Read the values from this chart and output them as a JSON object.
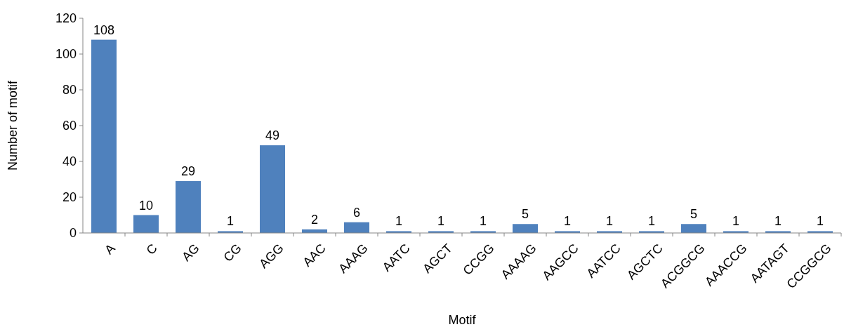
{
  "chart_data": {
    "type": "bar",
    "xlabel": "Motif",
    "ylabel": "Number of motif",
    "categories": [
      "A",
      "C",
      "AG",
      "CG",
      "AGG",
      "AAC",
      "AAAG",
      "AATC",
      "AGCT",
      "CCGG",
      "AAAAG",
      "AAGCC",
      "AATCC",
      "AGCTC",
      "ACGGCG",
      "AAACCG",
      "AATAGT",
      "CCGGCG"
    ],
    "values": [
      108,
      10,
      29,
      1,
      49,
      2,
      6,
      1,
      1,
      1,
      5,
      1,
      1,
      1,
      5,
      1,
      1,
      1
    ],
    "color": "#4f81bd",
    "ylim": [
      0,
      120
    ],
    "yticks": [
      0,
      20,
      40,
      60,
      80,
      100,
      120
    ],
    "data_labels": true
  }
}
